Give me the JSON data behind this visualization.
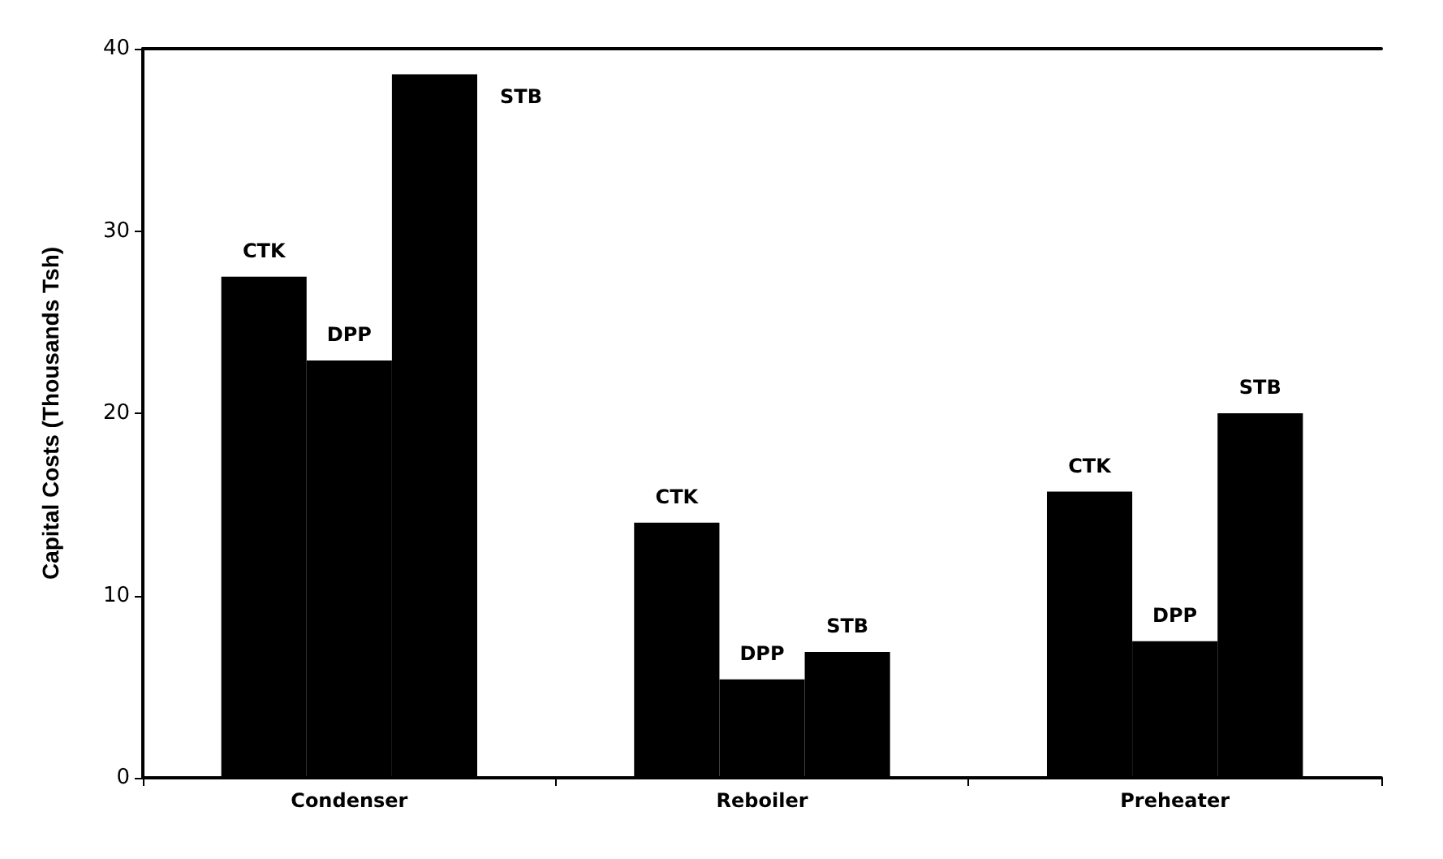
{
  "chart_data": {
    "type": "bar",
    "ylabel": "Capital Costs (Thousands Tsh)",
    "categories": [
      "Condenser",
      "Reboiler",
      "Preheater"
    ],
    "series": [
      {
        "name": "CTK",
        "color": "#000000",
        "values": [
          27.5,
          14.0,
          15.7
        ]
      },
      {
        "name": "DPP",
        "color": "#000000",
        "values": [
          22.9,
          5.4,
          7.5
        ]
      },
      {
        "name": "STB",
        "color": "#000000",
        "values": [
          38.6,
          6.9,
          20.0
        ]
      }
    ],
    "ylim": [
      0,
      40
    ],
    "yticks": [
      0,
      10,
      20,
      30,
      40
    ],
    "grid": false,
    "legend": false
  }
}
